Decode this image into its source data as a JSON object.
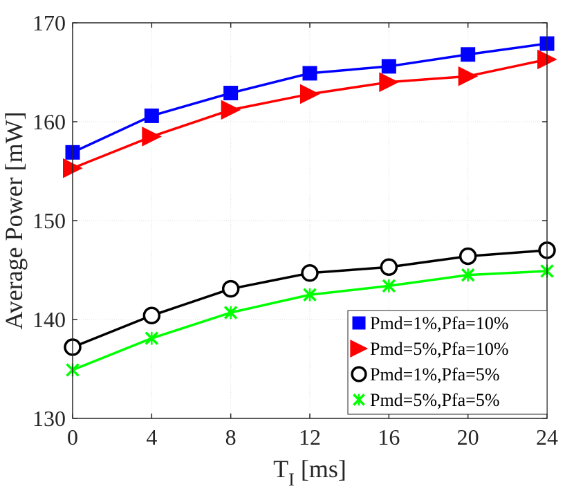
{
  "chart_data": {
    "type": "line",
    "title": "",
    "xlabel": {
      "main": "T",
      "subscript": "I",
      "unit": " [ms]"
    },
    "ylabel": "Average Power [mW]",
    "x": [
      0,
      4,
      8,
      12,
      16,
      20,
      24
    ],
    "xticks": [
      "0",
      "4",
      "8",
      "12",
      "16",
      "20",
      "24"
    ],
    "yticks": [
      "130",
      "140",
      "150",
      "160",
      "170"
    ],
    "xlim": [
      0,
      24
    ],
    "ylim": [
      130,
      170
    ],
    "grid": true,
    "legend_position": "bottom-right",
    "series": [
      {
        "name": "Pmd=1%,Pfa=10%",
        "color": "#0000ff",
        "marker": "square",
        "values": [
          156.9,
          160.6,
          162.9,
          164.9,
          165.6,
          166.8,
          167.9
        ]
      },
      {
        "name": "Pmd=5%,Pfa=10%",
        "color": "#ff0000",
        "marker": "triangle-right",
        "values": [
          155.3,
          158.5,
          161.2,
          162.8,
          164.0,
          164.6,
          166.3
        ]
      },
      {
        "name": "Pmd=1%,Pfa=5%",
        "color": "#000000",
        "marker": "circle",
        "values": [
          137.2,
          140.4,
          143.1,
          144.7,
          145.3,
          146.4,
          147.0
        ]
      },
      {
        "name": "Pmd=5%,Pfa=5%",
        "color": "#00ff00",
        "marker": "x",
        "values": [
          134.9,
          138.1,
          140.7,
          142.5,
          143.4,
          144.5,
          144.9
        ]
      }
    ]
  }
}
